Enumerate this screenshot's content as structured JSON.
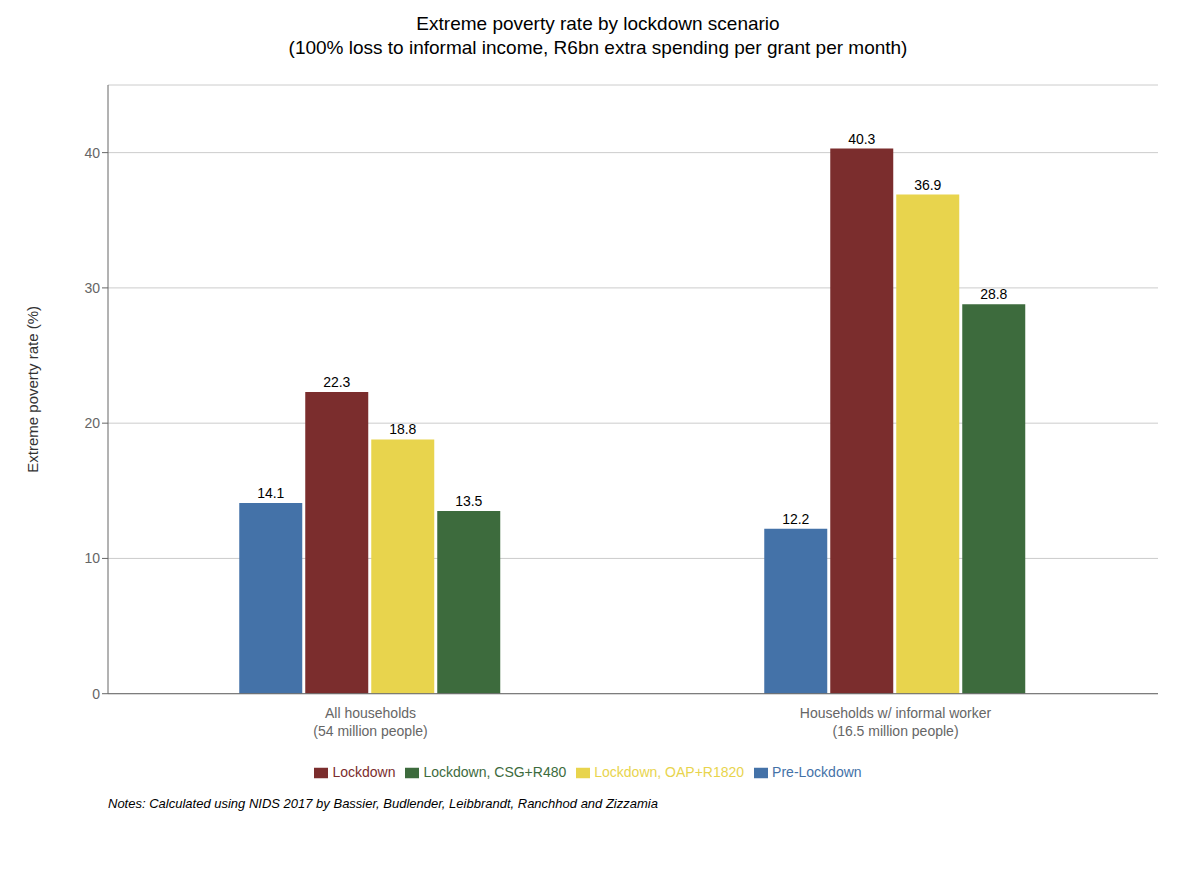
{
  "chart_data": {
    "type": "bar",
    "title": "Extreme poverty rate by lockdown scenario",
    "subtitle": "(100% loss to informal income, R6bn extra spending per grant per month)",
    "y_label": "Extreme poverty rate (%)",
    "categories": [
      "All households\n(54 million people)",
      "Households w/ informal worker\n(16.5 million people)"
    ],
    "series": [
      {
        "name": "Pre-Lockdown",
        "color": "#4472a8",
        "values": [
          14.1,
          12.2
        ]
      },
      {
        "name": "Lockdown",
        "color": "#7b2d2d",
        "values": [
          22.3,
          40.3
        ]
      },
      {
        "name": "Lockdown, OAP+R1820",
        "color": "#e8d44d",
        "values": [
          18.8,
          36.9
        ]
      },
      {
        "name": "Lockdown, CSG+R480",
        "color": "#3d6b3d",
        "values": [
          13.5,
          28.8
        ]
      }
    ],
    "ylim": [
      0,
      45
    ],
    "yticks": [
      0,
      10,
      20,
      30,
      40
    ],
    "grid": true,
    "legend": "bottom",
    "data_labels": true,
    "annotations": [
      "Notes: Calculated using NIDS 2017 by Bassier, Budlender, Leibbrandt, Ranchhod and Zizzamia"
    ]
  }
}
